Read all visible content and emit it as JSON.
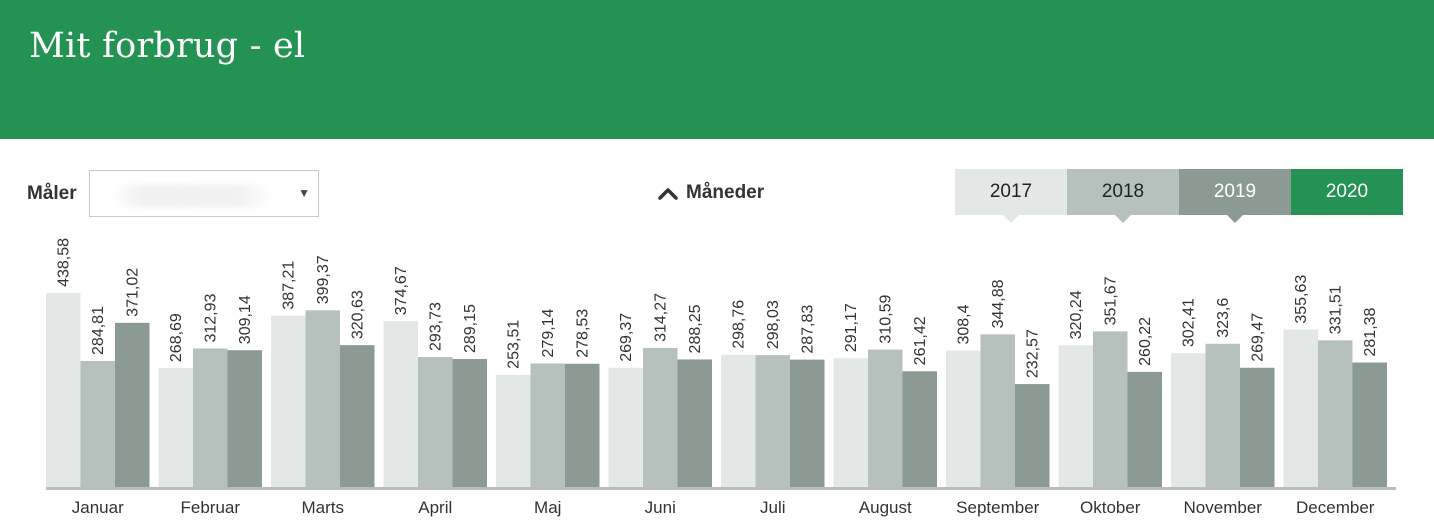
{
  "page": {
    "title": "Mit forbrug - el"
  },
  "meter": {
    "label": "Måler",
    "value": ""
  },
  "period_toggle": {
    "label": "Måneder",
    "icon": "chevron-up-icon"
  },
  "year_tabs": [
    {
      "label": "2017",
      "bg": "#e3e8e6",
      "fg": "#222222",
      "notch": true
    },
    {
      "label": "2018",
      "bg": "#b6c0bc",
      "fg": "#222222",
      "notch": true
    },
    {
      "label": "2019",
      "bg": "#8b9a92",
      "fg": "#ffffff",
      "notch": true
    },
    {
      "label": "2020",
      "bg": "#239252",
      "fg": "#ffffff",
      "notch": false
    }
  ],
  "colors": {
    "header": "#239252",
    "accent": "#239252"
  },
  "chart_data": {
    "type": "bar",
    "categories": [
      "Januar",
      "Februar",
      "Marts",
      "April",
      "Maj",
      "Juni",
      "Juli",
      "August",
      "September",
      "Oktober",
      "November",
      "December"
    ],
    "series": [
      {
        "name": "2017",
        "color": "#e3e8e6",
        "values": [
          438.58,
          268.69,
          387.21,
          374.67,
          253.51,
          269.37,
          298.76,
          291.17,
          308.4,
          320.24,
          302.41,
          355.63
        ],
        "value_labels": [
          "438,58",
          "268,69",
          "387,21",
          "374,67",
          "253,51",
          "269,37",
          "298,76",
          "291,17",
          "308,4",
          "320,24",
          "302,41",
          "355,63"
        ]
      },
      {
        "name": "2018",
        "color": "#b6c0bc",
        "values": [
          284.81,
          312.93,
          399.37,
          293.73,
          279.14,
          314.27,
          298.03,
          310.59,
          344.88,
          351.67,
          323.6,
          331.51
        ],
        "value_labels": [
          "284,81",
          "312,93",
          "399,37",
          "293,73",
          "279,14",
          "314,27",
          "298,03",
          "310,59",
          "344,88",
          "351,67",
          "323,6",
          "331,51"
        ]
      },
      {
        "name": "2019",
        "color": "#8b9a92",
        "values": [
          371.02,
          309.14,
          320.63,
          289.15,
          278.53,
          288.25,
          287.83,
          261.42,
          232.57,
          260.22,
          269.47,
          281.38
        ],
        "value_labels": [
          "371,02",
          "309,14",
          "320,63",
          "289,15",
          "278,53",
          "288,25",
          "287,83",
          "261,42",
          "232,57",
          "260,22",
          "269,47",
          "281,38"
        ]
      }
    ],
    "title": "",
    "xlabel": "",
    "ylabel": "",
    "ylim": [
      0,
      450
    ],
    "grid": false,
    "legend": "top-right"
  }
}
